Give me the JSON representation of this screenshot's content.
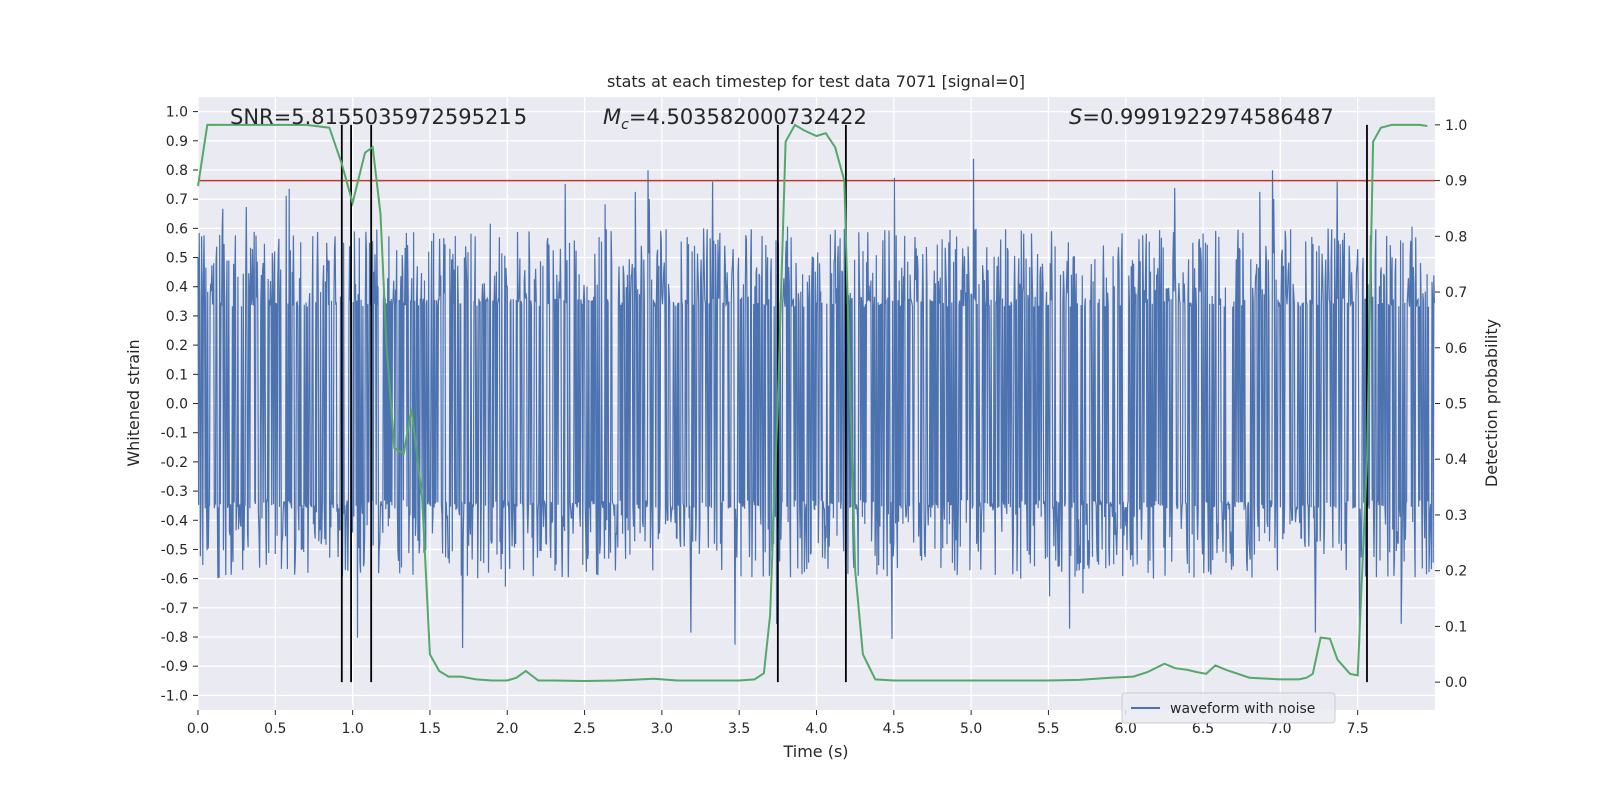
{
  "chart_data": {
    "type": "line",
    "title": "stats at each timestep for test data 7071 [signal=0]",
    "xlabel": "Time (s)",
    "ylabel": "Whitened strain",
    "y2label": "Detection probability",
    "xlim": [
      0.0,
      8.0
    ],
    "ylim": [
      -1.05,
      1.05
    ],
    "y2lim": [
      -0.05,
      1.05
    ],
    "xticks": [
      0.0,
      0.5,
      1.0,
      1.5,
      2.0,
      2.5,
      3.0,
      3.5,
      4.0,
      4.5,
      5.0,
      5.5,
      6.0,
      6.5,
      7.0,
      7.5
    ],
    "yticks": [
      -1.0,
      -0.9,
      -0.8,
      -0.7,
      -0.6,
      -0.5,
      -0.4,
      -0.3,
      -0.2,
      -0.1,
      0.0,
      0.1,
      0.2,
      0.3,
      0.4,
      0.5,
      0.6,
      0.7,
      0.8,
      0.9,
      1.0
    ],
    "y2ticks": [
      0.0,
      0.1,
      0.2,
      0.3,
      0.4,
      0.5,
      0.6,
      0.7,
      0.8,
      0.9,
      1.0
    ],
    "grid": true,
    "legend": {
      "position": "lower-right",
      "entries": [
        "waveform with noise"
      ]
    },
    "annotations": {
      "snr": "SNR=5.815503597259521 5",
      "mc_symbol": "M",
      "mc_sub": "c",
      "mc_value": "=4.503582000732422",
      "s_symbol": "S",
      "s_value": "=0.9991922974586487"
    },
    "threshold": {
      "axis": "y2",
      "value": 0.9,
      "color": "#c0392b"
    },
    "vlines": [
      0.93,
      0.99,
      1.12,
      3.75,
      4.19,
      7.56
    ],
    "strain_series": {
      "name": "waveform with noise",
      "color": "#4c72b0",
      "samples_per_second": 256,
      "core_amplitude": 0.36,
      "typical_peak": 0.6,
      "max_peak": 0.85
    },
    "probability_series": {
      "name": "detection probability",
      "color": "#55a868",
      "x": [
        0.0,
        0.06,
        0.15,
        0.3,
        0.5,
        0.7,
        0.85,
        0.93,
        1.0,
        1.08,
        1.13,
        1.18,
        1.22,
        1.27,
        1.33,
        1.38,
        1.45,
        1.5,
        1.56,
        1.62,
        1.7,
        1.8,
        1.9,
        2.0,
        2.06,
        2.12,
        2.2,
        2.3,
        2.5,
        2.7,
        2.95,
        3.1,
        3.3,
        3.5,
        3.6,
        3.66,
        3.7,
        3.75,
        3.8,
        3.86,
        3.92,
        4.0,
        4.06,
        4.12,
        4.18,
        4.25,
        4.3,
        4.38,
        4.5,
        4.7,
        4.95,
        5.1,
        5.3,
        5.5,
        5.7,
        5.9,
        6.05,
        6.14,
        6.25,
        6.32,
        6.4,
        6.46,
        6.52,
        6.58,
        6.65,
        6.8,
        7.0,
        7.12,
        7.17,
        7.21,
        7.26,
        7.32,
        7.37,
        7.45,
        7.5,
        7.56,
        7.6,
        7.65,
        7.72,
        7.9,
        7.95
      ],
      "y": [
        0.89,
        1.0,
        1.0,
        1.0,
        1.0,
        1.0,
        0.995,
        0.93,
        0.86,
        0.95,
        0.96,
        0.84,
        0.6,
        0.42,
        0.41,
        0.49,
        0.33,
        0.05,
        0.02,
        0.01,
        0.01,
        0.005,
        0.003,
        0.003,
        0.008,
        0.02,
        0.003,
        0.003,
        0.002,
        0.003,
        0.006,
        0.003,
        0.003,
        0.003,
        0.005,
        0.016,
        0.12,
        0.5,
        0.97,
        1.0,
        0.99,
        0.98,
        0.985,
        0.96,
        0.9,
        0.2,
        0.05,
        0.005,
        0.003,
        0.003,
        0.003,
        0.003,
        0.003,
        0.003,
        0.004,
        0.008,
        0.01,
        0.018,
        0.033,
        0.025,
        0.022,
        0.018,
        0.015,
        0.03,
        0.022,
        0.008,
        0.005,
        0.005,
        0.008,
        0.015,
        0.08,
        0.078,
        0.04,
        0.015,
        0.012,
        0.4,
        0.97,
        0.995,
        1.0,
        1.0,
        0.998
      ]
    }
  }
}
